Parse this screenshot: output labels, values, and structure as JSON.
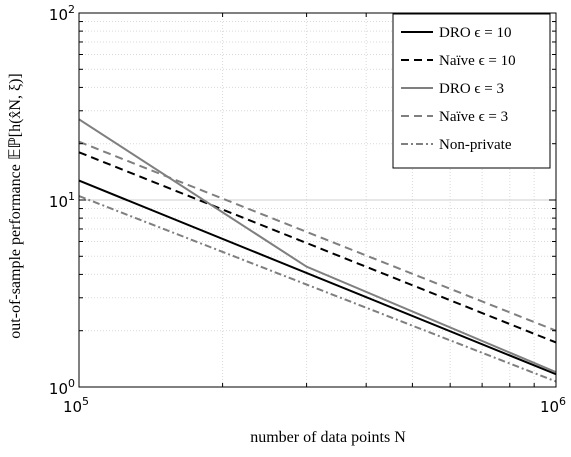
{
  "chart_data": {
    "type": "line",
    "xlabel": "number of data points N",
    "ylabel": "out-of-sample performance 𝔼ℙ[h(x̂N, ξ)]",
    "xscale": "log",
    "yscale": "log",
    "xlim": [
      100000,
      1000000
    ],
    "ylim": [
      1,
      100
    ],
    "grid": true,
    "minor_grid": true,
    "legend_position": "top-right",
    "x_ticks": [
      {
        "base": "10",
        "exp": "5"
      },
      {
        "base": "10",
        "exp": "6"
      }
    ],
    "y_ticks": [
      {
        "base": "10",
        "exp": "0"
      },
      {
        "base": "10",
        "exp": "1"
      },
      {
        "base": "10",
        "exp": "2"
      }
    ],
    "series": [
      {
        "name": "DRO ϵ = 10",
        "color": "#000000",
        "dash": "solid",
        "x": [
          100000,
          1000000
        ],
        "y": [
          12.7,
          1.17
        ]
      },
      {
        "name": "Naïve ϵ = 10",
        "color": "#000000",
        "dash": "dashed",
        "x": [
          100000,
          1000000
        ],
        "y": [
          18.0,
          1.73
        ]
      },
      {
        "name": "DRO ϵ = 3",
        "color": "#7f7f7f",
        "dash": "solid",
        "x": [
          100000,
          300000,
          1000000
        ],
        "y": [
          27.0,
          4.4,
          1.2
        ]
      },
      {
        "name": "Naïve ϵ = 3",
        "color": "#7f7f7f",
        "dash": "dashed",
        "x": [
          100000,
          1000000
        ],
        "y": [
          20.5,
          2.0
        ]
      },
      {
        "name": "Non-private",
        "color": "#7f7f7f",
        "dash": "dashdot",
        "x": [
          100000,
          1000000
        ],
        "y": [
          10.5,
          1.07
        ]
      }
    ]
  }
}
